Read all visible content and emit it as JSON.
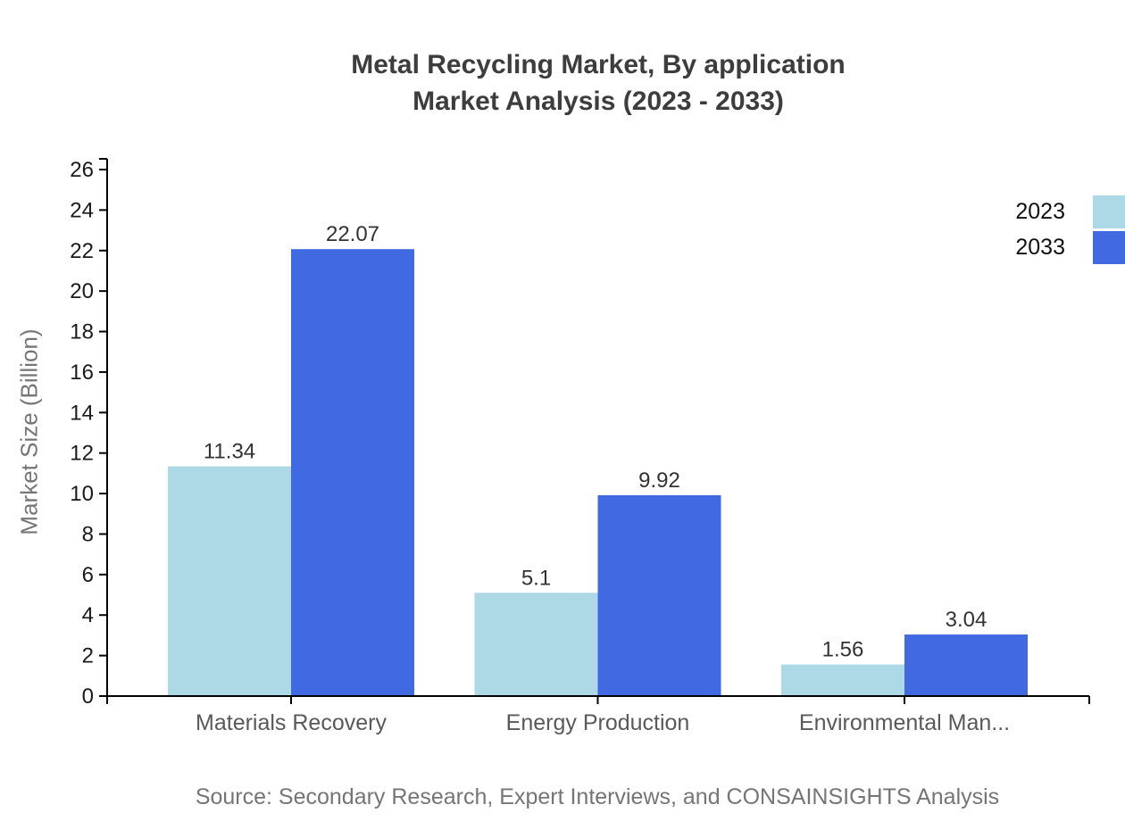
{
  "header": {
    "title_line1": "Metal Recycling Market, By application",
    "title_line2": "Market Analysis (2023 - 2033)"
  },
  "chart_data": {
    "type": "bar",
    "categories": [
      "Materials Recovery",
      "Energy Production",
      "Environmental Man..."
    ],
    "series": [
      {
        "name": "2023",
        "color": "#ADD8E6",
        "values": [
          11.34,
          5.1,
          1.56
        ]
      },
      {
        "name": "2033",
        "color": "#4169E1",
        "values": [
          22.07,
          9.92,
          3.04
        ]
      }
    ],
    "value_labels": [
      [
        "11.34",
        "5.1",
        "1.56"
      ],
      [
        "22.07",
        "9.92",
        "3.04"
      ]
    ],
    "ylabel": "Market Size (Billion)",
    "xlabel": "",
    "ylim": [
      0,
      26
    ],
    "yticks": [
      0,
      2,
      4,
      6,
      8,
      10,
      12,
      14,
      16,
      18,
      20,
      22,
      24,
      26
    ],
    "grid": false,
    "legend_position": "top-right",
    "colors": {
      "axis": "#000000",
      "tick_label": "#1a1a1a",
      "category_label": "#595959",
      "value_label": "#333333",
      "title": "#3d3d3d",
      "muted_text": "#757575"
    }
  },
  "footer": {
    "source": "Source: Secondary Research, Expert Interviews, and CONSAINSIGHTS Analysis"
  }
}
